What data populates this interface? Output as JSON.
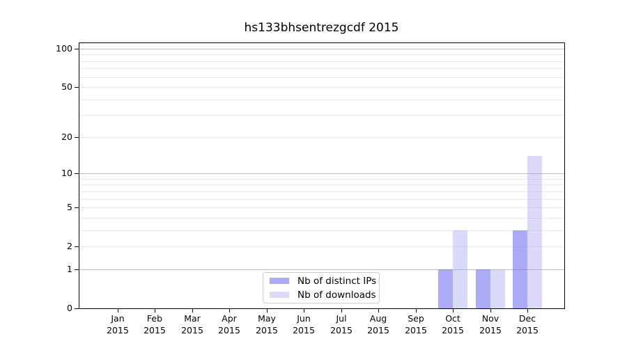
{
  "chart_data": {
    "type": "bar",
    "title": "hs133bhsentrezgcdf 2015",
    "scale": "log(1+y)",
    "categories": [
      "Jan",
      "Feb",
      "Mar",
      "Apr",
      "May",
      "Jun",
      "Jul",
      "Aug",
      "Sep",
      "Oct",
      "Nov",
      "Dec"
    ],
    "category_year": "2015",
    "series": [
      {
        "name": "Nb of distinct IPs",
        "color": "#6666ee",
        "alpha": 0.55,
        "values": [
          0,
          0,
          0,
          0,
          0,
          0,
          0,
          0,
          0,
          1,
          1,
          3
        ]
      },
      {
        "name": "Nb of downloads",
        "color": "#aaaaee",
        "alpha": 0.43,
        "values": [
          0,
          0,
          0,
          0,
          0,
          0,
          0,
          0,
          0,
          3,
          1,
          14
        ]
      }
    ],
    "y_ticks": [
      0,
      1,
      2,
      5,
      10,
      20,
      50,
      100
    ],
    "major_gridlines": [
      1,
      10,
      100
    ],
    "minor_gridlines": [
      2,
      3,
      4,
      5,
      6,
      7,
      8,
      9,
      20,
      30,
      40,
      50,
      60,
      70,
      80,
      90
    ],
    "ylim": [
      0,
      100
    ],
    "grid": true,
    "legend_position": "bottom-center",
    "colors": {
      "minor_grid": "#eaeaea",
      "major_grid": "#bdbdbd",
      "spine": "#000000",
      "background": "#ffffff"
    }
  }
}
